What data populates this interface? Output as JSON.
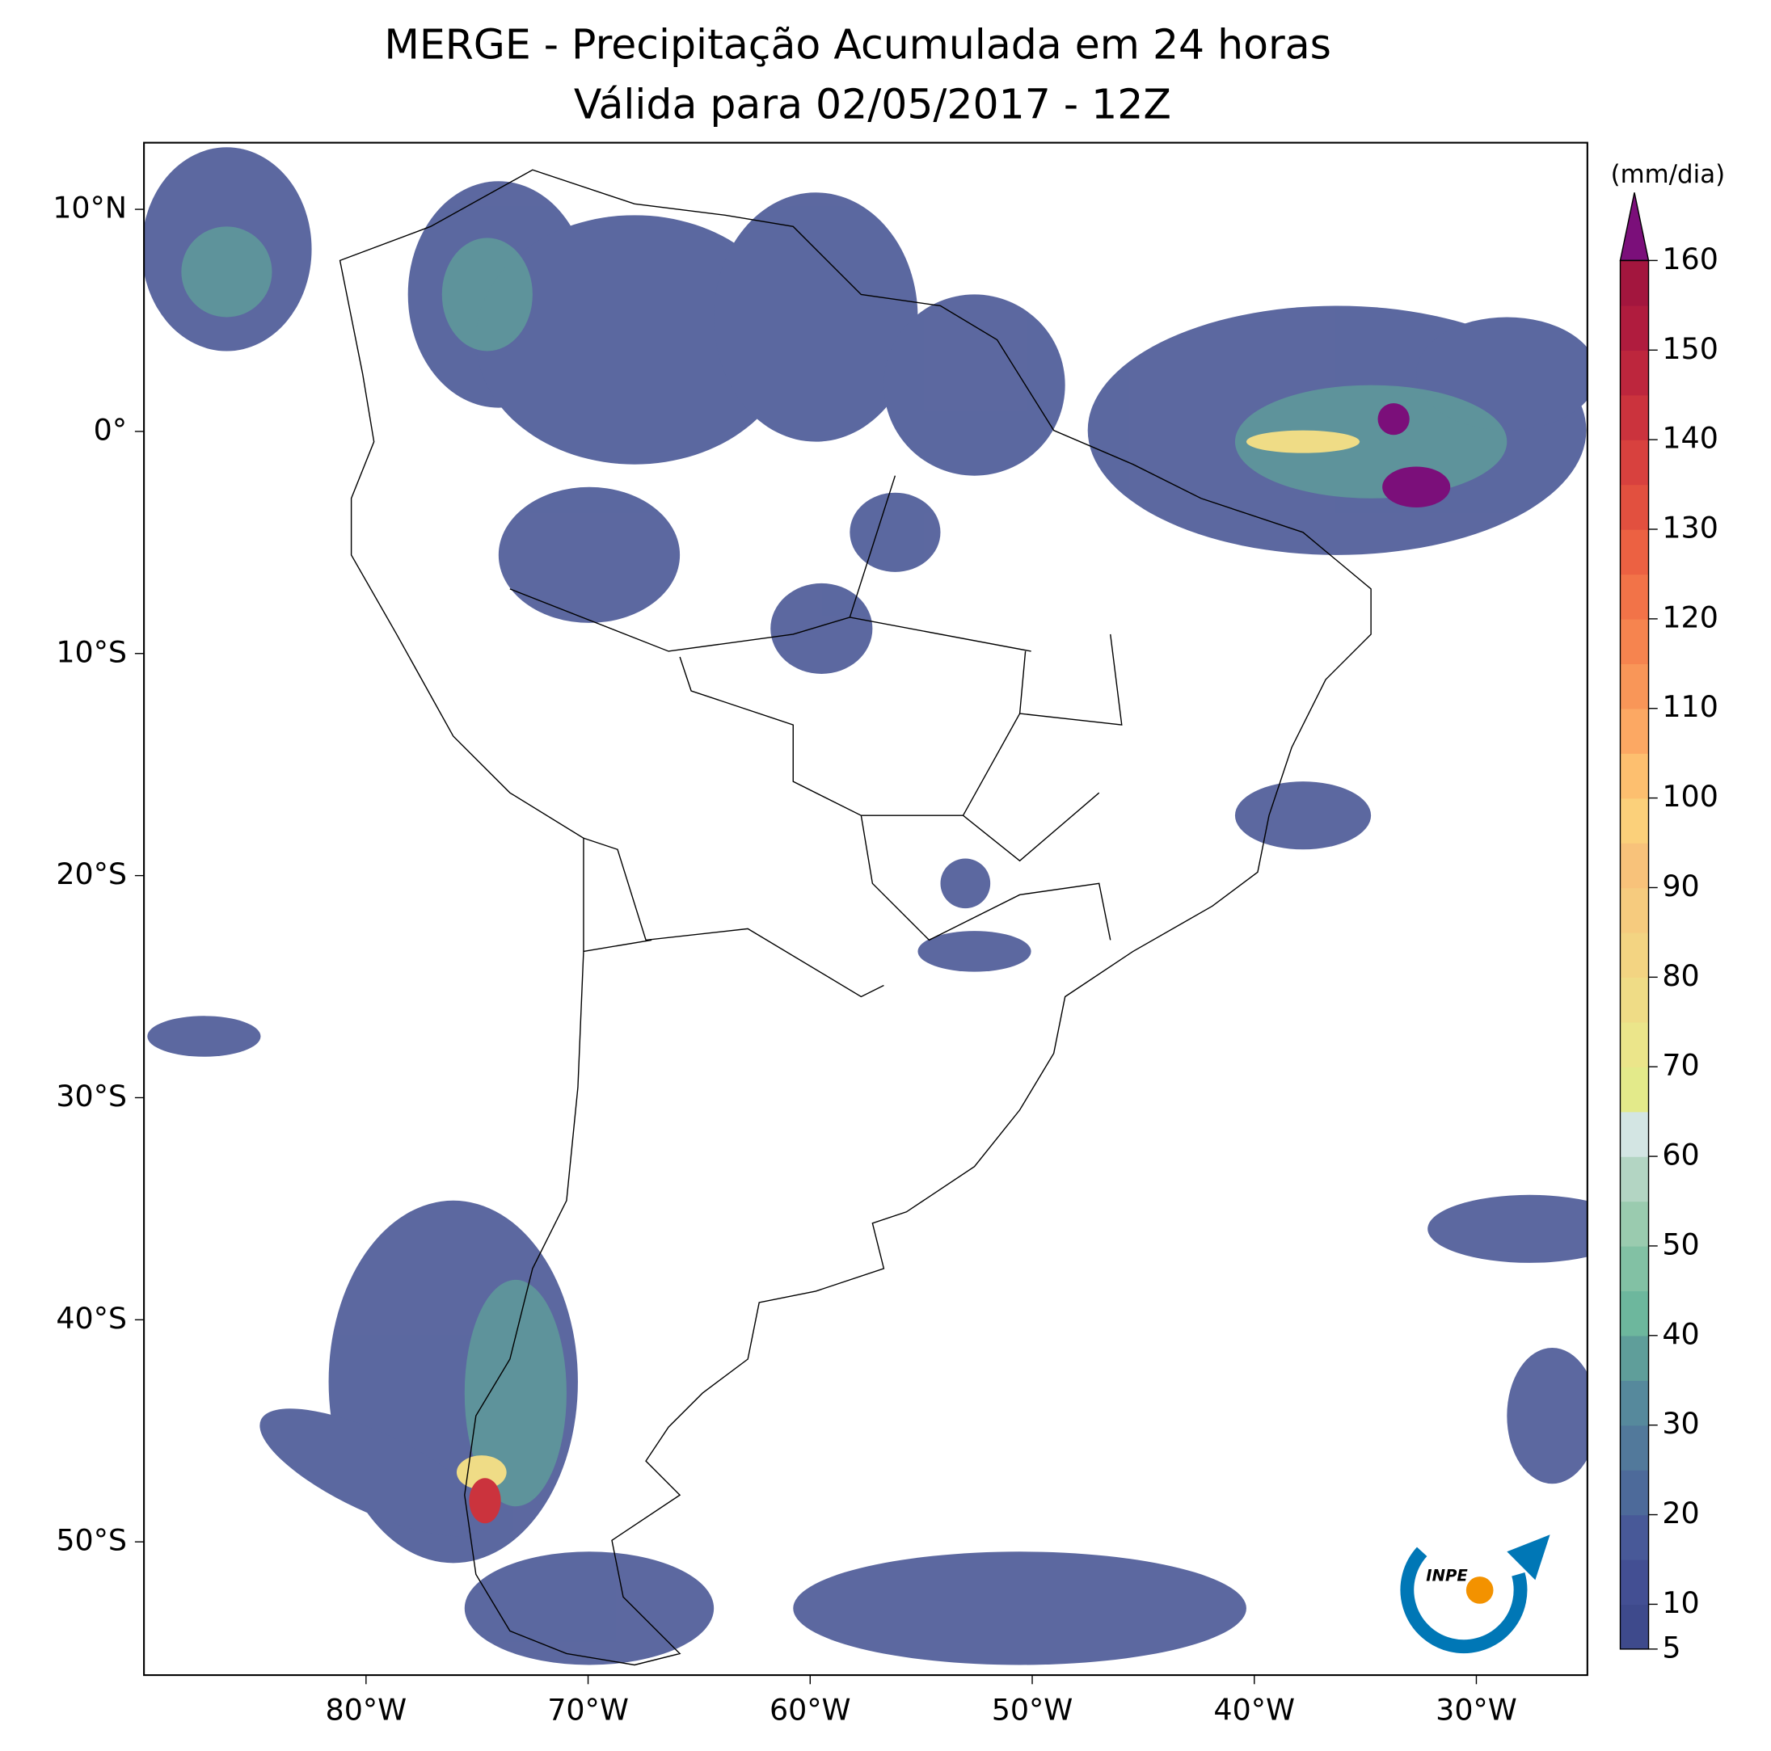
{
  "title": "MERGE - Precipitação Acumulada em 24 horas",
  "subtitle": "Válida para 02/05/2017 - 12Z",
  "map": {
    "xlim": [
      -90,
      -25
    ],
    "ylim": [
      -56,
      13
    ],
    "xticks": [
      {
        "value": -80,
        "label": "80°W"
      },
      {
        "value": -70,
        "label": "70°W"
      },
      {
        "value": -60,
        "label": "60°W"
      },
      {
        "value": -50,
        "label": "50°W"
      },
      {
        "value": -40,
        "label": "40°W"
      },
      {
        "value": -30,
        "label": "30°W"
      }
    ],
    "yticks": [
      {
        "value": 10,
        "label": "10°N"
      },
      {
        "value": 0,
        "label": "0°"
      },
      {
        "value": -10,
        "label": "10°S"
      },
      {
        "value": -20,
        "label": "20°S"
      },
      {
        "value": -30,
        "label": "30°S"
      },
      {
        "value": -40,
        "label": "40°S"
      },
      {
        "value": -50,
        "label": "50°S"
      }
    ]
  },
  "colorbar": {
    "label": "(mm/dia)",
    "lim": [
      5,
      160
    ],
    "ticks": [
      5,
      10,
      20,
      30,
      40,
      50,
      60,
      70,
      80,
      90,
      100,
      110,
      120,
      130,
      140,
      150,
      160
    ],
    "colors": [
      "#3e4a8c",
      "#434f93",
      "#485998",
      "#4d6a9a",
      "#52799b",
      "#56899c",
      "#5f9e9a",
      "#6db79d",
      "#82c1a4",
      "#9acbaf",
      "#b3d5c3",
      "#d3e5e3",
      "#e3ea8a",
      "#ebe58a",
      "#efdc86",
      "#f3d482",
      "#f6cb7e",
      "#f8c27a",
      "#fbd07a",
      "#fdbf6f",
      "#fca863",
      "#f99658",
      "#f6844f",
      "#f27348",
      "#ec6142",
      "#e2503f",
      "#d8413e",
      "#cb333d",
      "#bd263d",
      "#b01c3e",
      "#a3163e"
    ],
    "extend_color": "#7b0f7a"
  },
  "logo": "INPE"
}
